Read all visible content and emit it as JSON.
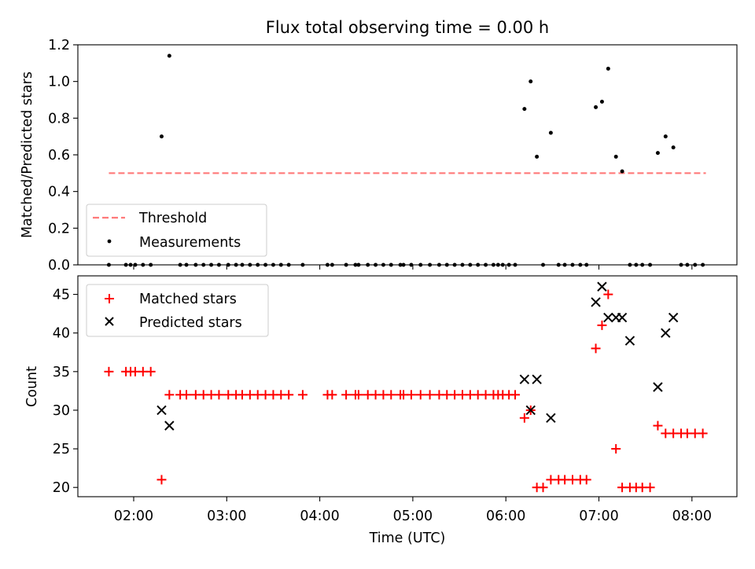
{
  "figure": {
    "title": "Flux total observing time = 0.00 h"
  },
  "chart_data": [
    {
      "type": "scatter",
      "ylabel": "Matched/Predicted stars",
      "xlim": [
        "01:24",
        "08:29"
      ],
      "ylim": [
        0,
        1.2
      ],
      "yticks": [
        "0.0",
        "0.2",
        "0.4",
        "0.6",
        "0.8",
        "1.0",
        "1.2"
      ],
      "x_tick_marks": [
        "02:00",
        "03:00",
        "04:00",
        "05:00",
        "06:00",
        "07:00",
        "08:00"
      ],
      "legend_position": "lower left",
      "threshold": {
        "name": "Threshold",
        "value": 0.5,
        "x_range": [
          "01:44",
          "08:09"
        ],
        "color": "#ff7a7a"
      },
      "series": [
        {
          "name": "Measurements",
          "color": "#000000",
          "x": [
            "01:44",
            "01:55",
            "01:58",
            "02:01",
            "02:06",
            "02:11",
            "02:18",
            "02:23",
            "02:30",
            "02:34",
            "02:40",
            "02:45",
            "02:50",
            "02:55",
            "03:01",
            "03:06",
            "03:10",
            "03:15",
            "03:20",
            "03:25",
            "03:30",
            "03:35",
            "03:40",
            "03:49",
            "04:05",
            "04:08",
            "04:17",
            "04:23",
            "04:25",
            "04:31",
            "04:36",
            "04:41",
            "04:46",
            "04:52",
            "04:54",
            "04:59",
            "05:05",
            "05:11",
            "05:17",
            "05:22",
            "05:27",
            "05:32",
            "05:37",
            "05:42",
            "05:47",
            "05:52",
            "05:55",
            "05:58",
            "06:02",
            "06:06",
            "06:12",
            "06:16",
            "06:20",
            "06:24",
            "06:29",
            "06:34",
            "06:38",
            "06:43",
            "06:48",
            "06:52",
            "06:58",
            "07:02",
            "07:06",
            "07:11",
            "07:15",
            "07:20",
            "07:24",
            "07:28",
            "07:33",
            "07:38",
            "07:43",
            "07:48",
            "07:53",
            "07:57",
            "08:02",
            "08:07"
          ],
          "y": [
            0,
            0,
            0,
            0,
            0,
            0,
            0.7,
            1.14,
            0,
            0,
            0,
            0,
            0,
            0,
            0,
            0,
            0,
            0,
            0,
            0,
            0,
            0,
            0,
            0,
            0,
            0,
            0,
            0,
            0,
            0,
            0,
            0,
            0,
            0,
            0,
            0,
            0,
            0,
            0,
            0,
            0,
            0,
            0,
            0,
            0,
            0,
            0,
            0,
            0,
            0,
            0.85,
            1.0,
            0.59,
            0,
            0.72,
            0,
            0,
            0,
            0,
            0,
            0.86,
            0.89,
            1.07,
            0.59,
            0.51,
            0,
            0,
            0,
            0,
            0.61,
            0.7,
            0.64,
            0,
            0,
            0,
            0
          ]
        }
      ]
    },
    {
      "type": "scatter",
      "xlabel": "Time (UTC)",
      "ylabel": "Count",
      "xlim": [
        "01:24",
        "08:29"
      ],
      "ylim": [
        18.8,
        47.4
      ],
      "yticks": [
        "20",
        "25",
        "30",
        "35",
        "40",
        "45"
      ],
      "xticks": [
        "02:00",
        "03:00",
        "04:00",
        "05:00",
        "06:00",
        "07:00",
        "08:00"
      ],
      "legend_position": "upper left",
      "series": [
        {
          "name": "Matched stars",
          "marker": "+",
          "color": "#ff0000",
          "x": [
            "01:44",
            "01:55",
            "01:58",
            "02:01",
            "02:06",
            "02:11",
            "02:18",
            "02:23",
            "02:30",
            "02:34",
            "02:40",
            "02:45",
            "02:50",
            "02:55",
            "03:01",
            "03:06",
            "03:10",
            "03:15",
            "03:20",
            "03:25",
            "03:30",
            "03:35",
            "03:40",
            "03:49",
            "04:05",
            "04:08",
            "04:17",
            "04:23",
            "04:25",
            "04:31",
            "04:36",
            "04:41",
            "04:46",
            "04:52",
            "04:54",
            "04:59",
            "05:05",
            "05:11",
            "05:17",
            "05:22",
            "05:27",
            "05:32",
            "05:37",
            "05:42",
            "05:47",
            "05:52",
            "05:55",
            "05:58",
            "06:02",
            "06:06",
            "06:12",
            "06:16",
            "06:20",
            "06:24",
            "06:29",
            "06:34",
            "06:38",
            "06:43",
            "06:48",
            "06:52",
            "06:58",
            "07:02",
            "07:06",
            "07:11",
            "07:15",
            "07:20",
            "07:24",
            "07:28",
            "07:33",
            "07:38",
            "07:43",
            "07:48",
            "07:53",
            "07:57",
            "08:02",
            "08:07"
          ],
          "y": [
            35,
            35,
            35,
            35,
            35,
            35,
            21,
            32,
            32,
            32,
            32,
            32,
            32,
            32,
            32,
            32,
            32,
            32,
            32,
            32,
            32,
            32,
            32,
            32,
            32,
            32,
            32,
            32,
            32,
            32,
            32,
            32,
            32,
            32,
            32,
            32,
            32,
            32,
            32,
            32,
            32,
            32,
            32,
            32,
            32,
            32,
            32,
            32,
            32,
            32,
            29,
            30,
            20,
            20,
            21,
            21,
            21,
            21,
            21,
            21,
            38,
            41,
            45,
            25,
            20,
            20,
            20,
            20,
            20,
            28,
            27,
            27,
            27,
            27,
            27,
            27
          ]
        },
        {
          "name": "Predicted stars",
          "marker": "x",
          "color": "#000000",
          "x": [
            "02:18",
            "02:23",
            "06:12",
            "06:16",
            "06:20",
            "06:29",
            "06:58",
            "07:02",
            "07:06",
            "07:11",
            "07:15",
            "07:20",
            "07:38",
            "07:43",
            "07:48"
          ],
          "y": [
            30,
            28,
            34,
            30,
            34,
            29,
            44,
            46,
            42,
            42,
            42,
            39,
            33,
            40,
            42
          ]
        }
      ]
    }
  ]
}
